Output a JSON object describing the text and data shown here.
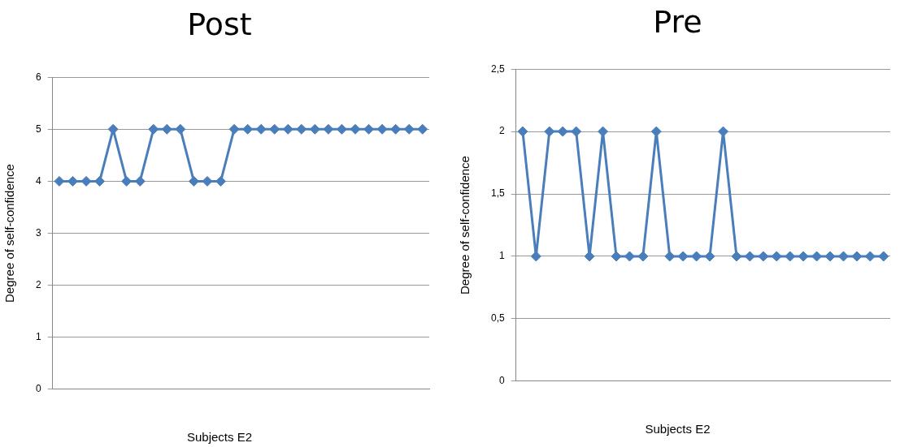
{
  "chart_data": [
    {
      "type": "line",
      "title": "Post",
      "xlabel": "Subjects E2",
      "ylabel": "Degree of self-confidence",
      "categories": [
        null,
        null,
        null,
        null,
        null,
        null,
        null,
        null,
        null,
        null,
        null,
        null,
        null,
        null,
        null,
        null,
        null,
        null,
        null,
        null,
        null,
        null,
        null,
        null,
        null,
        null,
        null,
        null
      ],
      "series": [
        {
          "color": "#4a7ebb",
          "values": [
            4,
            4,
            4,
            4,
            5,
            4,
            4,
            5,
            5,
            5,
            4,
            4,
            4,
            5,
            5,
            5,
            5,
            5,
            5,
            5,
            5,
            5,
            5,
            5,
            5,
            5,
            5,
            5
          ]
        }
      ],
      "ylim": [
        0,
        6
      ],
      "yticks": [
        0,
        1,
        2,
        3,
        4,
        5,
        6
      ],
      "grid": "y",
      "legend": false,
      "marker": "diamond",
      "line_style": "solid",
      "tick_labels": "y"
    },
    {
      "type": "line",
      "title": "Pre",
      "xlabel": "Subjects E2",
      "ylabel": "Degree of self-confidence",
      "categories": [
        null,
        null,
        null,
        null,
        null,
        null,
        null,
        null,
        null,
        null,
        null,
        null,
        null,
        null,
        null,
        null,
        null,
        null,
        null,
        null,
        null,
        null,
        null,
        null,
        null,
        null,
        null,
        null
      ],
      "series": [
        {
          "color": "#4a7ebb",
          "values": [
            2,
            1,
            2,
            2,
            2,
            1,
            2,
            1,
            1,
            1,
            2,
            1,
            1,
            1,
            1,
            2,
            1,
            1,
            1,
            1,
            1,
            1,
            1,
            1,
            1,
            1,
            1,
            1
          ]
        }
      ],
      "ylim": [
        0,
        2.5
      ],
      "yticks": [
        0,
        {
          "value": 0.5,
          "label": "0,5"
        },
        1,
        {
          "value": 1.5,
          "label": "1,5"
        },
        2,
        {
          "value": 2.5,
          "label": "2,5"
        }
      ],
      "grid": "y",
      "legend": false,
      "marker": "diamond",
      "line_style": "solid",
      "tick_labels": "y"
    }
  ]
}
